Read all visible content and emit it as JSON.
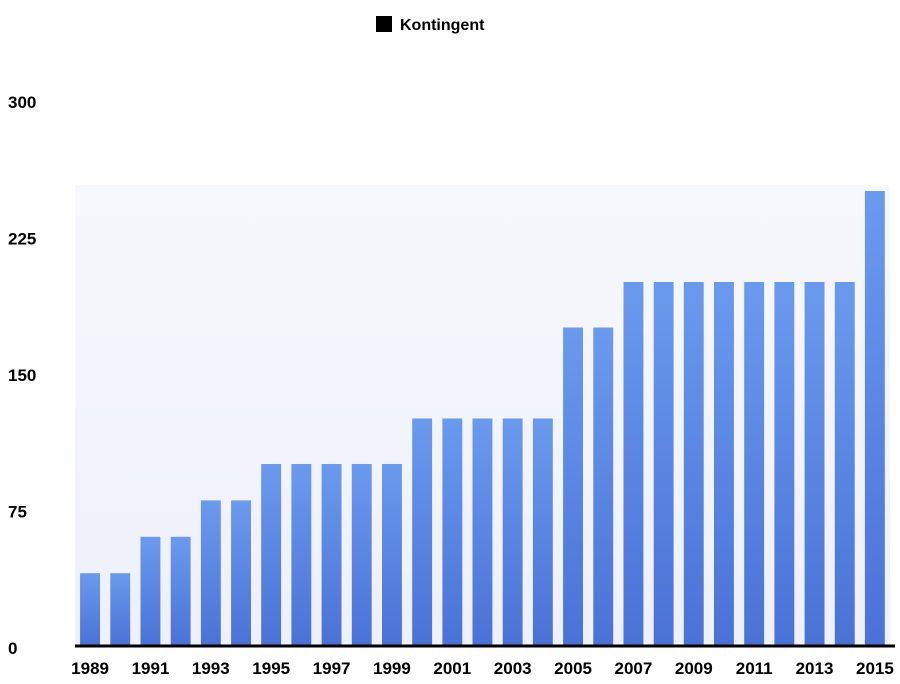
{
  "chart_data": {
    "type": "bar",
    "legend": {
      "position": "top-center",
      "label": "Kontingent"
    },
    "categories": [
      "1989",
      "1990",
      "1991",
      "1992",
      "1993",
      "1994",
      "1995",
      "1996",
      "1997",
      "1998",
      "1999",
      "2000",
      "2001",
      "2002",
      "2003",
      "2004",
      "2005",
      "2006",
      "2007",
      "2008",
      "2009",
      "2010",
      "2011",
      "2012",
      "2013",
      "2014",
      "2015"
    ],
    "x_tick_labels": [
      "1989",
      "1991",
      "1993",
      "1995",
      "1997",
      "1999",
      "2001",
      "2003",
      "2005",
      "2007",
      "2009",
      "2011",
      "2013",
      "2015"
    ],
    "series": [
      {
        "name": "Kontingent",
        "color": "#5a88e0",
        "values": [
          40,
          40,
          60,
          60,
          80,
          80,
          100,
          100,
          100,
          100,
          100,
          125,
          125,
          125,
          125,
          125,
          175,
          175,
          200,
          200,
          200,
          200,
          200,
          200,
          200,
          200,
          250
        ]
      }
    ],
    "ylim": [
      0,
      300
    ],
    "y_ticks": [
      0,
      75,
      150,
      225,
      300
    ],
    "grid": false
  }
}
